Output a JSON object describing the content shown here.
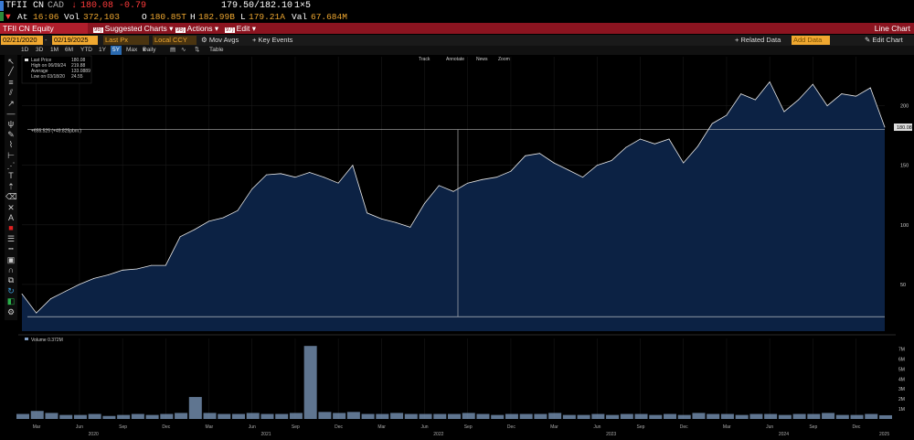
{
  "header": {
    "ticker": "TFII CN",
    "currency": "CAD",
    "last": "180.08",
    "change": "-0.79",
    "bid_ask": "179.50/182.10",
    "size": "1×5",
    "at_label": "At",
    "time": "16:06",
    "vol_label": "Vol",
    "volume": "372,103",
    "open_label": "O",
    "open": "180.85T",
    "high_label": "H",
    "high": "182.99B",
    "low_label": "L",
    "low": "179.21A",
    "val_label": "Val",
    "value": "67.684M"
  },
  "menubar": {
    "security": "TFII CN Equity",
    "items": [
      {
        "num": "96)",
        "label": "Suggested Charts"
      },
      {
        "num": "96)",
        "label": "Actions"
      },
      {
        "num": "97)",
        "label": "Edit"
      }
    ],
    "title": "Line Chart"
  },
  "controls": {
    "start_date": "02/21/2020",
    "end_date": "02/19/2025",
    "field": "Last Px",
    "currency": "Local CCY",
    "mov_avgs": "Mov Avgs",
    "key_events": "Key Events",
    "related_data": "Related Data",
    "add_data": "Add Data",
    "edit_chart": "Edit Chart"
  },
  "range": {
    "buttons": [
      "1D",
      "3D",
      "1M",
      "6M",
      "YTD",
      "1Y",
      "5Y",
      "Max"
    ],
    "selected": "5Y",
    "period": "Daily",
    "table": "Table"
  },
  "chart_tools": [
    "Track",
    "Annotate",
    "News",
    "Zoom"
  ],
  "legend": {
    "last_price": "Last Price",
    "last_price_val": "180.08",
    "high_label": "High on 06/09/24",
    "high_val": "219.88",
    "avg_label": "Average",
    "avg_val": "133.0889",
    "low_label": "Low on 03/18/20",
    "low_val": "24.55"
  },
  "annotation": "+655.525 (+49.825pbm.)",
  "volume_legend": "Volume 0.372M",
  "toolbar_icons": [
    "cursor-icon",
    "line-icon",
    "fibonacci-icon",
    "channel-icon",
    "arrow-icon",
    "horizontal-line-icon",
    "pitchfork-icon",
    "pencil-icon",
    "brush-icon",
    "ruler-icon",
    "regression-icon",
    "text-icon",
    "arrow-up-icon",
    "eraser-icon",
    "delete-icon",
    "font-icon",
    "color-icon",
    "line-width-icon",
    "line-style-icon",
    "fill-icon",
    "magnet-icon",
    "clone-icon",
    "refresh-icon",
    "palette-icon",
    "settings-icon"
  ],
  "chart_data": {
    "type": "area",
    "title": "",
    "xlabel": "",
    "ylabel": "",
    "y_ticks": [
      "50",
      "100",
      "150",
      "200"
    ],
    "last_price_tag": "180.08",
    "ylim": [
      20,
      235
    ],
    "x_month_labels": [
      "Mar",
      "Jun",
      "Sep",
      "Dec",
      "Mar",
      "Jun",
      "Sep",
      "Dec",
      "Mar",
      "Jun",
      "Sep",
      "Dec",
      "Mar",
      "Jun",
      "Sep",
      "Dec",
      "Mar",
      "Jun",
      "Sep",
      "Dec"
    ],
    "x_year_labels": [
      "2020",
      "2021",
      "2022",
      "2023",
      "2024",
      "2025"
    ],
    "x": [
      "2020-02",
      "2020-03",
      "2020-04",
      "2020-05",
      "2020-06",
      "2020-07",
      "2020-08",
      "2020-09",
      "2020-10",
      "2020-11",
      "2020-12",
      "2021-01",
      "2021-02",
      "2021-03",
      "2021-04",
      "2021-05",
      "2021-06",
      "2021-07",
      "2021-08",
      "2021-09",
      "2021-10",
      "2021-11",
      "2021-12",
      "2022-01",
      "2022-02",
      "2022-03",
      "2022-04",
      "2022-05",
      "2022-06",
      "2022-07",
      "2022-08",
      "2022-09",
      "2022-10",
      "2022-11",
      "2022-12",
      "2023-01",
      "2023-02",
      "2023-03",
      "2023-04",
      "2023-05",
      "2023-06",
      "2023-07",
      "2023-08",
      "2023-09",
      "2023-10",
      "2023-11",
      "2023-12",
      "2024-01",
      "2024-02",
      "2024-03",
      "2024-04",
      "2024-05",
      "2024-06",
      "2024-07",
      "2024-08",
      "2024-09",
      "2024-10",
      "2024-11",
      "2024-12",
      "2025-01",
      "2025-02"
    ],
    "values": [
      42,
      26,
      38,
      44,
      50,
      55,
      58,
      62,
      63,
      66,
      66,
      90,
      96,
      103,
      106,
      112,
      130,
      142,
      143,
      140,
      144,
      140,
      135,
      150,
      110,
      105,
      102,
      98,
      118,
      133,
      128,
      135,
      138,
      140,
      145,
      158,
      160,
      152,
      146,
      140,
      150,
      154,
      165,
      172,
      168,
      172,
      152,
      166,
      185,
      192,
      210,
      205,
      220,
      195,
      205,
      218,
      200,
      210,
      208,
      215,
      182
    ],
    "annotation_line_value": 180,
    "volume_ticks": [
      "1M",
      "2M",
      "3M",
      "4M",
      "5M",
      "6M",
      "7M"
    ],
    "volume_series": {
      "name": "Volume",
      "values_millions": [
        0.5,
        0.8,
        0.6,
        0.4,
        0.4,
        0.5,
        0.3,
        0.4,
        0.5,
        0.4,
        0.5,
        0.6,
        2.2,
        0.6,
        0.5,
        0.5,
        0.6,
        0.5,
        0.5,
        0.6,
        7.3,
        0.7,
        0.6,
        0.7,
        0.5,
        0.5,
        0.6,
        0.5,
        0.5,
        0.5,
        0.5,
        0.6,
        0.5,
        0.4,
        0.5,
        0.5,
        0.5,
        0.6,
        0.4,
        0.4,
        0.5,
        0.4,
        0.5,
        0.5,
        0.4,
        0.5,
        0.4,
        0.6,
        0.5,
        0.5,
        0.4,
        0.5,
        0.5,
        0.4,
        0.5,
        0.5,
        0.6,
        0.4,
        0.4,
        0.5,
        0.37
      ]
    }
  },
  "colors": {
    "amber": "#f0a830",
    "red": "#ff3b3b",
    "menu_red": "#8b1420",
    "area_fill": "#0c2244",
    "line": "#e8e8e8",
    "volume": "#7f9cc0"
  }
}
